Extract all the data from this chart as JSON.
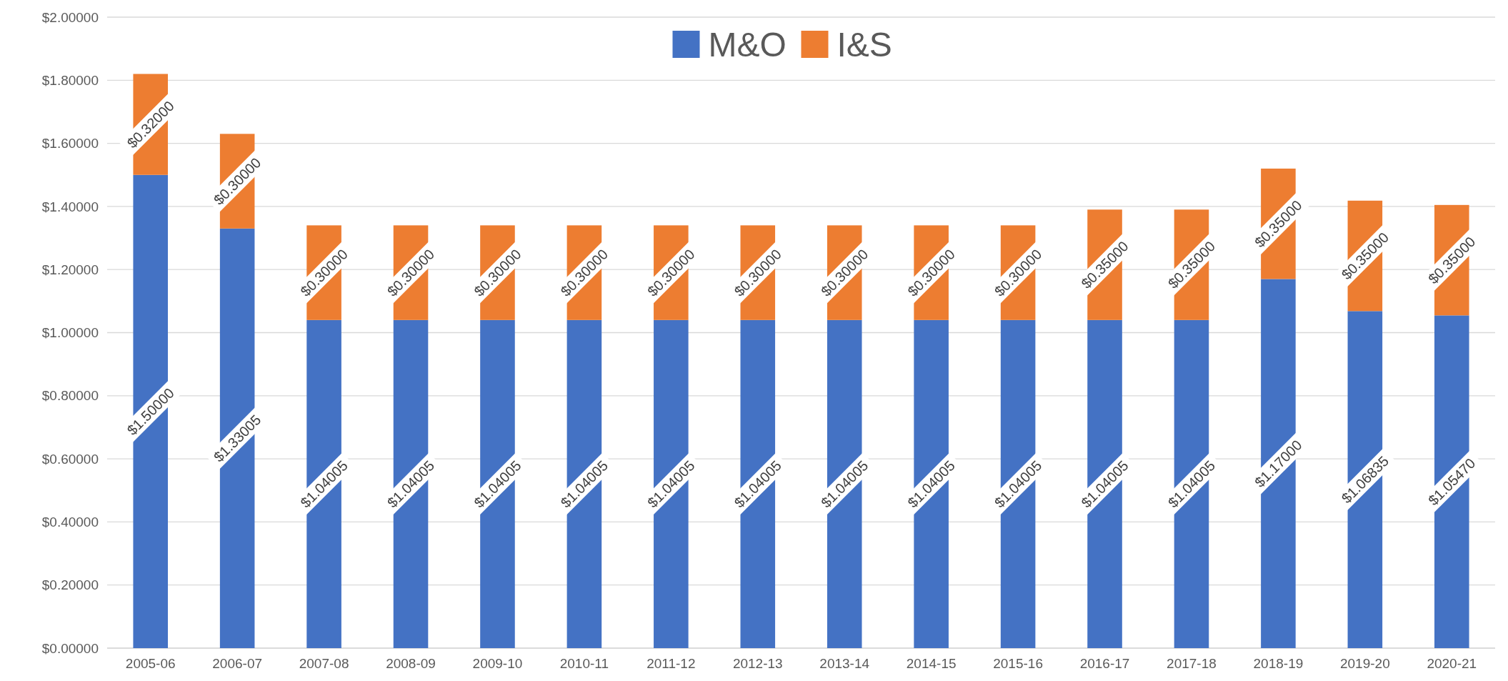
{
  "chart_data": {
    "type": "bar",
    "stacked": true,
    "categories": [
      "2005-06",
      "2006-07",
      "2007-08",
      "2008-09",
      "2009-10",
      "2010-11",
      "2011-12",
      "2012-13",
      "2013-14",
      "2014-15",
      "2015-16",
      "2016-17",
      "2017-18",
      "2018-19",
      "2019-20",
      "2020-21"
    ],
    "series": [
      {
        "name": "M&O",
        "color": "#4472c4",
        "values": [
          1.5,
          1.33005,
          1.04005,
          1.04005,
          1.04005,
          1.04005,
          1.04005,
          1.04005,
          1.04005,
          1.04005,
          1.04005,
          1.04005,
          1.04005,
          1.17,
          1.06835,
          1.0547
        ],
        "value_labels": [
          "$1.50000",
          "$1.33005",
          "$1.04005",
          "$1.04005",
          "$1.04005",
          "$1.04005",
          "$1.04005",
          "$1.04005",
          "$1.04005",
          "$1.04005",
          "$1.04005",
          "$1.04005",
          "$1.04005",
          "$1.17000",
          "$1.06835",
          "$1.05470"
        ]
      },
      {
        "name": "I&S",
        "color": "#ed7d31",
        "values": [
          0.32,
          0.3,
          0.3,
          0.3,
          0.3,
          0.3,
          0.3,
          0.3,
          0.3,
          0.3,
          0.3,
          0.35,
          0.35,
          0.35,
          0.35,
          0.35
        ],
        "value_labels": [
          "$0.32000",
          "$0.30000",
          "$0.30000",
          "$0.30000",
          "$0.30000",
          "$0.30000",
          "$0.30000",
          "$0.30000",
          "$0.30000",
          "$0.30000",
          "$0.30000",
          "$0.35000",
          "$0.35000",
          "$0.35000",
          "$0.35000",
          "$0.35000"
        ]
      }
    ],
    "ylim": [
      0,
      2
    ],
    "yticks": [
      {
        "value": 0,
        "label": "$0.00000"
      },
      {
        "value": 0.2,
        "label": "$0.20000"
      },
      {
        "value": 0.4,
        "label": "$0.40000"
      },
      {
        "value": 0.6,
        "label": "$0.60000"
      },
      {
        "value": 0.8,
        "label": "$0.80000"
      },
      {
        "value": 1,
        "label": "$1.00000"
      },
      {
        "value": 1.2,
        "label": "$1.20000"
      },
      {
        "value": 1.4,
        "label": "$1.40000"
      },
      {
        "value": 1.6,
        "label": "$1.60000"
      },
      {
        "value": 1.8,
        "label": "$1.80000"
      },
      {
        "value": 2,
        "label": "$2.00000"
      }
    ],
    "grid": "y",
    "legend": "top"
  }
}
